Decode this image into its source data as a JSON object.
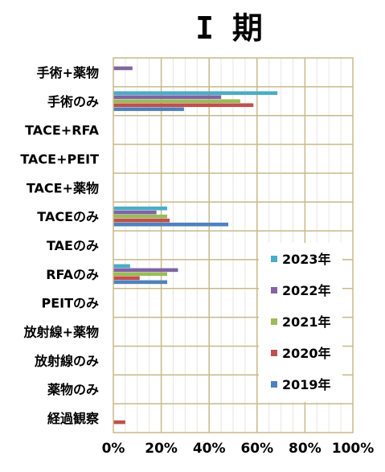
{
  "chart_data": {
    "type": "bar",
    "orientation": "horizontal",
    "title": "I 期",
    "categories": [
      "手術+薬物",
      "手術のみ",
      "TACE+RFA",
      "TACE+PEIT",
      "TACE+薬物",
      "TACEのみ",
      "TAEのみ",
      "RFAのみ",
      "PEITのみ",
      "放射線+薬物",
      "放射線のみ",
      "薬物のみ",
      "経過観察"
    ],
    "xlim": [
      0,
      100
    ],
    "x_ticks": [
      "0%",
      "20%",
      "40%",
      "60%",
      "80%",
      "100%"
    ],
    "grid": true,
    "legend_position": "lower-right",
    "series": [
      {
        "name": "2023年",
        "color": "#4bacc6",
        "values": [
          0,
          68.5,
          0,
          0,
          0,
          22.5,
          0,
          7,
          0,
          0,
          0,
          0,
          0
        ]
      },
      {
        "name": "2022年",
        "color": "#8064a2",
        "values": [
          8,
          45,
          0,
          0,
          0,
          18,
          0,
          27,
          0,
          0,
          0,
          0,
          0
        ]
      },
      {
        "name": "2021年",
        "color": "#9bbb59",
        "values": [
          0,
          53,
          0,
          0,
          0,
          22.5,
          0,
          22.5,
          0,
          0,
          0,
          0,
          0
        ]
      },
      {
        "name": "2020年",
        "color": "#c0504d",
        "values": [
          0,
          58.5,
          0,
          0,
          0,
          23.5,
          0,
          11,
          0,
          0,
          0,
          0,
          5
        ]
      },
      {
        "name": "2019年",
        "color": "#4f81bd",
        "values": [
          0,
          29.5,
          0,
          0,
          0,
          48,
          0,
          22.5,
          0,
          0,
          0,
          0,
          0
        ]
      }
    ]
  }
}
